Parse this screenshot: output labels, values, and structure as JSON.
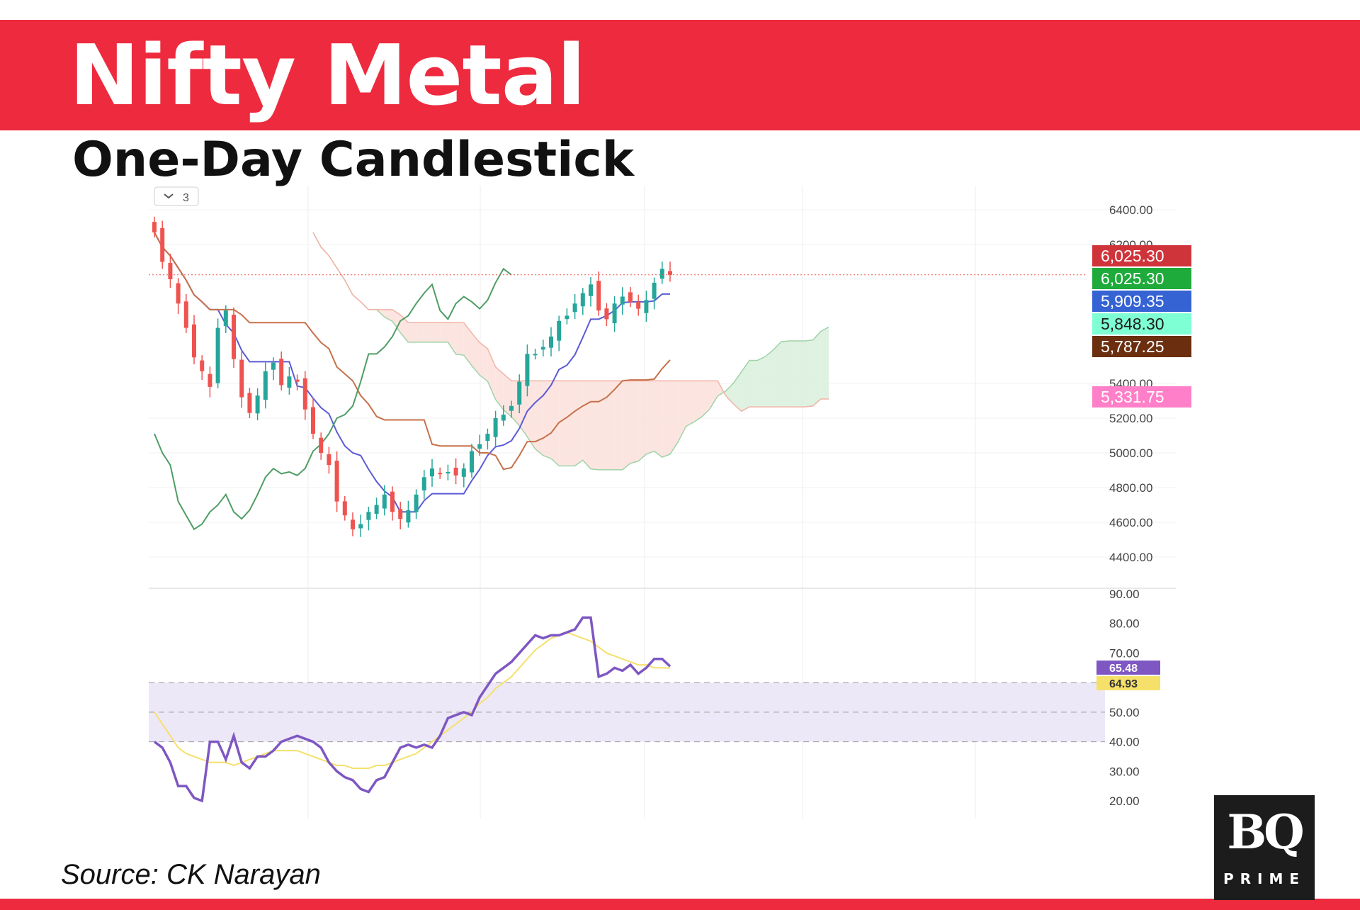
{
  "header": {
    "title": "Nifty Metal",
    "subtitle": "One-Day Candlestick"
  },
  "footer": {
    "source": "Source: CK Narayan"
  },
  "logo": {
    "text": "BQ",
    "subtext": "PRIME"
  },
  "indicator_badge": "3",
  "colors": {
    "brand_red": "#ee2a3e",
    "candle_up": "#26a69a",
    "candle_down": "#ef5350",
    "conversion_line": "#5b5bd6",
    "base_line": "#c7714b",
    "lagging_span": "#4f9d65",
    "cloud_bullish": "#d4ecd7",
    "cloud_bearish": "#fbdcd6",
    "rsi_line": "#7e57c2",
    "rsi_ma": "#f5e06a",
    "rsi_band": "#ede8f8"
  },
  "chart_data": [
    {
      "type": "candlestick",
      "title": "One-Day Candlestick",
      "ylim": [
        4300,
        6500
      ],
      "yticks": [
        "6400.00",
        "6200.00",
        "5400.00",
        "5200.00",
        "5000.00",
        "4800.00",
        "4600.00",
        "4400.00"
      ],
      "ytick_values": [
        6400,
        6200,
        5400,
        5200,
        5000,
        4800,
        4600,
        4400
      ],
      "overlays": [
        "Ichimoku cloud",
        "conversion line",
        "base line",
        "lagging span"
      ],
      "price_tags": [
        {
          "label": "6,025.30",
          "value": 6025.3,
          "color": "#d0343b"
        },
        {
          "label": "6,025.30",
          "value": 6025.3,
          "color": "#1faa3c"
        },
        {
          "label": "5,909.35",
          "value": 5909.35,
          "color": "#3563d4"
        },
        {
          "label": "5,848.30",
          "value": 5848.3,
          "color": "#7fffd4"
        },
        {
          "label": "5,787.25",
          "value": 5787.25,
          "color": "#6b2f10"
        },
        {
          "label": "5,331.75",
          "value": 5331.75,
          "color": "#ff7fc8"
        }
      ],
      "last_close": 6025.3,
      "closes": [
        6270,
        6100,
        6000,
        5860,
        5720,
        5550,
        5470,
        5380,
        5720,
        5820,
        5540,
        5320,
        5230,
        5330,
        5470,
        5520,
        5390,
        5440,
        5410,
        5250,
        5110,
        5000,
        4930,
        4720,
        4640,
        4560,
        4590,
        4660,
        4700,
        4760,
        4660,
        4620,
        4670,
        4760,
        4860,
        4910,
        4880,
        4890,
        4870,
        4910,
        5010,
        5050,
        5110,
        5200,
        5220,
        5270,
        5410,
        5570,
        5570,
        5610,
        5670,
        5760,
        5790,
        5860,
        5920,
        5970,
        5820,
        5770,
        5860,
        5900,
        5870,
        5830,
        5880,
        5980,
        6060,
        6025.3
      ]
    },
    {
      "type": "line",
      "title": "RSI",
      "ylim": [
        15,
        92
      ],
      "yticks": [
        "90.00",
        "80.00",
        "70.00",
        "60.00",
        "50.00",
        "40.00",
        "30.00",
        "20.00"
      ],
      "ytick_values": [
        90,
        80,
        70,
        60,
        50,
        40,
        30,
        20
      ],
      "bands": [
        60,
        50,
        40
      ],
      "series": [
        {
          "values": [
            40,
            38,
            33,
            25,
            25,
            21,
            20,
            40,
            40,
            34,
            42,
            33,
            31,
            35,
            35,
            37,
            40,
            41,
            42,
            41,
            40,
            38,
            33,
            30,
            28,
            27,
            24,
            23,
            27,
            28,
            33,
            38,
            39,
            38,
            39,
            38,
            42,
            48,
            49,
            50,
            49,
            55,
            59,
            63,
            65,
            67,
            70,
            73,
            76,
            75,
            76,
            76,
            77,
            78,
            82,
            82,
            62,
            63,
            65,
            64,
            66,
            63,
            65,
            68,
            68,
            65.48
          ],
          "last_label": "65.48"
        },
        {
          "values": [
            50,
            46,
            42,
            38,
            36,
            35,
            34,
            33,
            33,
            33,
            32,
            33,
            34,
            35,
            36,
            37,
            37,
            37,
            37,
            36,
            35,
            34,
            33,
            32,
            32,
            31,
            31,
            31,
            32,
            32,
            33,
            34,
            35,
            36,
            38,
            40,
            42,
            44,
            46,
            48,
            50,
            53,
            55,
            58,
            60,
            62,
            65,
            68,
            71,
            73,
            75,
            76,
            77,
            76,
            75,
            74,
            72,
            70,
            69,
            68,
            67,
            66,
            66,
            65,
            65,
            64.93
          ],
          "last_label": "64.93"
        }
      ]
    }
  ]
}
